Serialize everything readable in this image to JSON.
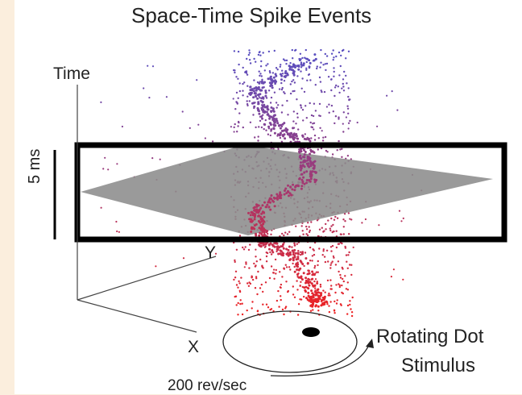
{
  "figure": {
    "title": "Space-Time Spike Events",
    "axis_time": "Time",
    "axis_y": "Y",
    "axis_x": "X",
    "scale_bar": "5 ms",
    "stimulus_line1": "Rotating Dot",
    "stimulus_line2": "Stimulus",
    "rotation_rate": "200 rev/sec"
  },
  "colors": {
    "background": "#fbeedd",
    "spike_top": "#5a4fc0",
    "spike_bottom": "#ee2222",
    "time_window": "#000000",
    "stimulus_slice": "#8c8c8c",
    "dot": "#000000"
  },
  "icons": [
    "rotation-arrow-icon",
    "stimulus-dot-icon"
  ]
}
